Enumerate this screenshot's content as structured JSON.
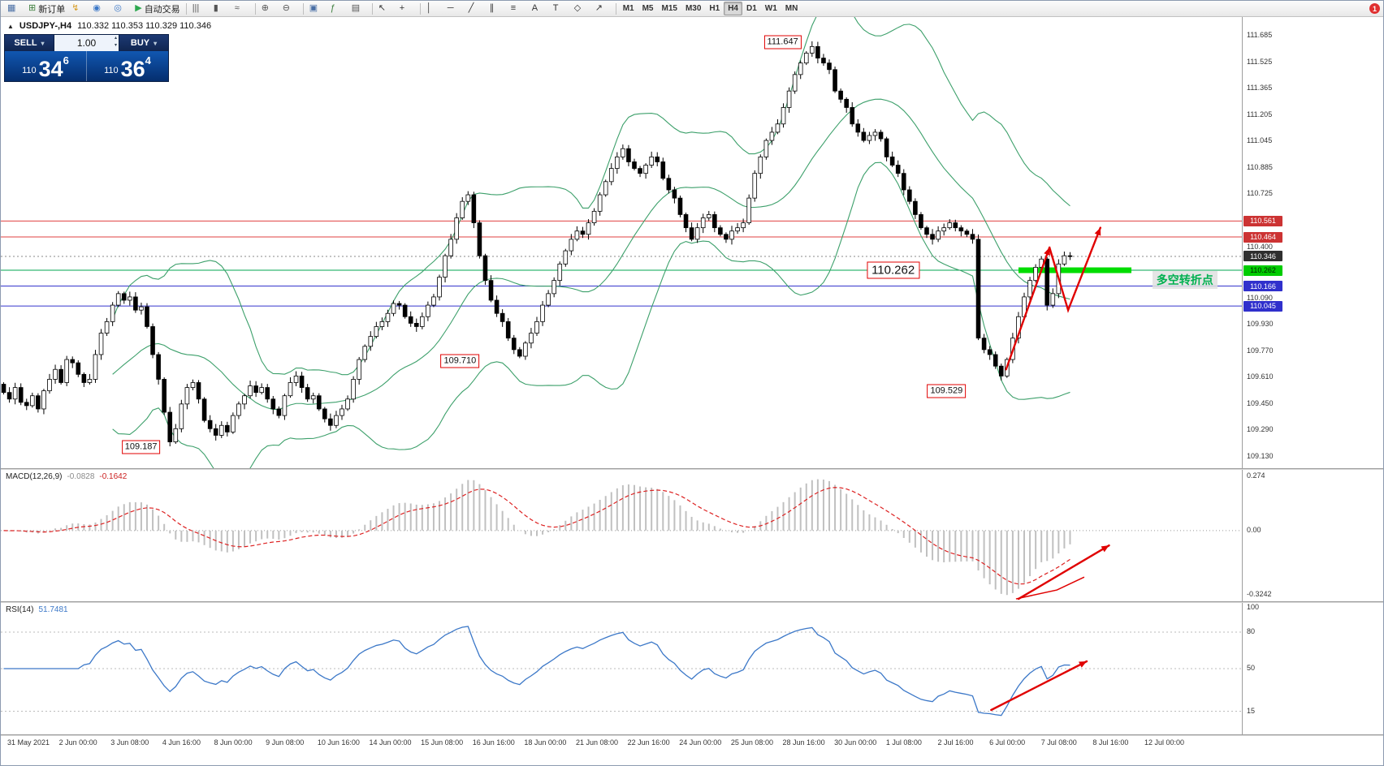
{
  "toolbar": {
    "items": [
      {
        "name": "new-chart-icon",
        "glyph": "▦",
        "color": "#4a6fa5"
      },
      {
        "name": "new-order-button",
        "label": "新订单",
        "glyph": "⊞",
        "color": "#3b7d3b"
      },
      {
        "name": "alerts-icon",
        "glyph": "↯",
        "color": "#d79b20"
      },
      {
        "name": "market-watch-icon",
        "glyph": "◉",
        "color": "#3c78c8"
      },
      {
        "name": "data-window-icon",
        "glyph": "◎",
        "color": "#3c78c8"
      },
      {
        "name": "autotrading-button",
        "label": "自动交易",
        "glyph": "▶",
        "color": "#2da84f"
      },
      {
        "sep": true
      },
      {
        "name": "bar-chart-icon",
        "glyph": "|||",
        "color": "#555555"
      },
      {
        "name": "candle-chart-icon",
        "glyph": "▮",
        "color": "#555555"
      },
      {
        "name": "line-chart-icon",
        "glyph": "≈",
        "color": "#555555"
      },
      {
        "sep": true
      },
      {
        "name": "zoom-in-icon",
        "glyph": "⊕",
        "color": "#555555"
      },
      {
        "name": "zoom-out-icon",
        "glyph": "⊖",
        "color": "#555555"
      },
      {
        "sep": true
      },
      {
        "name": "tile-windows-icon",
        "glyph": "▣",
        "color": "#4a6fa5"
      },
      {
        "name": "indicators-icon",
        "glyph": "ƒ",
        "color": "#3b7d3b"
      },
      {
        "name": "templates-icon",
        "glyph": "▤",
        "color": "#555555"
      },
      {
        "sep": true
      },
      {
        "name": "cursor-icon",
        "glyph": "↖",
        "color": "#333333"
      },
      {
        "name": "crosshair-icon",
        "glyph": "+",
        "color": "#333333"
      },
      {
        "sep": true
      },
      {
        "name": "vertical-line-icon",
        "glyph": "│",
        "color": "#333333"
      },
      {
        "name": "horizontal-line-icon",
        "glyph": "─",
        "color": "#333333"
      },
      {
        "name": "trendline-icon",
        "glyph": "╱",
        "color": "#333333"
      },
      {
        "name": "channel-icon",
        "glyph": "∥",
        "color": "#333333"
      },
      {
        "name": "fibonacci-icon",
        "glyph": "≡",
        "color": "#333333"
      },
      {
        "name": "text-tool-icon",
        "glyph": "A",
        "color": "#333333"
      },
      {
        "name": "label-tool-icon",
        "glyph": "T",
        "color": "#333333"
      },
      {
        "name": "shapes-icon",
        "glyph": "◇",
        "color": "#333333"
      },
      {
        "name": "arrows-tool-icon",
        "glyph": "↗",
        "color": "#333333"
      },
      {
        "sep": true
      }
    ],
    "timeframes": [
      {
        "label": "M1"
      },
      {
        "label": "M5"
      },
      {
        "label": "M15"
      },
      {
        "label": "M30"
      },
      {
        "label": "H1"
      },
      {
        "label": "H4",
        "active": true
      },
      {
        "label": "D1"
      },
      {
        "label": "W1"
      },
      {
        "label": "MN"
      }
    ],
    "notification_badge": "1"
  },
  "symbol_header": {
    "marker": "▲",
    "symbol": "USDJPY-,H4",
    "ohlc": "110.332 110.353 110.329 110.346"
  },
  "quote_panel": {
    "sell_label": "SELL",
    "buy_label": "BUY",
    "volume": "1.00",
    "sell_price": {
      "prefix": "110",
      "big": "34",
      "sup": "6"
    },
    "buy_price": {
      "prefix": "110",
      "big": "36",
      "sup": "4"
    }
  },
  "chart_data": {
    "type": "candlestick+indicators",
    "symbol": "USDJPY-",
    "timeframe": "H4",
    "closes": [
      109.52,
      109.48,
      109.55,
      109.46,
      109.44,
      109.5,
      109.42,
      109.53,
      109.6,
      109.66,
      109.58,
      109.72,
      109.7,
      109.63,
      109.58,
      109.6,
      109.75,
      109.88,
      109.95,
      110.05,
      110.12,
      110.08,
      110.1,
      110.02,
      110.04,
      109.92,
      109.75,
      109.6,
      109.4,
      109.22,
      109.3,
      109.45,
      109.55,
      109.58,
      109.48,
      109.35,
      109.3,
      109.26,
      109.32,
      109.28,
      109.38,
      109.45,
      109.5,
      109.56,
      109.52,
      109.55,
      109.48,
      109.42,
      109.38,
      109.5,
      109.58,
      109.62,
      109.55,
      109.48,
      109.5,
      109.42,
      109.36,
      109.32,
      109.38,
      109.42,
      109.48,
      109.6,
      109.72,
      109.8,
      109.86,
      109.92,
      109.95,
      110.0,
      110.06,
      110.05,
      109.98,
      109.94,
      109.92,
      109.98,
      110.05,
      110.1,
      110.22,
      110.35,
      110.45,
      110.58,
      110.68,
      110.72,
      110.55,
      110.35,
      110.2,
      110.08,
      110.0,
      109.95,
      109.85,
      109.78,
      109.74,
      109.82,
      109.88,
      109.95,
      110.05,
      110.12,
      110.2,
      110.3,
      110.38,
      110.45,
      110.5,
      110.48,
      110.55,
      110.62,
      110.72,
      110.8,
      110.88,
      110.95,
      111.0,
      110.92,
      110.88,
      110.85,
      110.9,
      110.95,
      110.92,
      110.82,
      110.75,
      110.7,
      110.6,
      110.52,
      110.45,
      110.52,
      110.58,
      110.6,
      110.52,
      110.48,
      110.45,
      110.5,
      110.52,
      110.55,
      110.7,
      110.85,
      110.95,
      111.05,
      111.1,
      111.15,
      111.25,
      111.35,
      111.45,
      111.52,
      111.58,
      111.62,
      111.55,
      111.52,
      111.48,
      111.35,
      111.3,
      111.25,
      111.15,
      111.1,
      111.05,
      111.08,
      111.1,
      111.06,
      110.95,
      110.9,
      110.85,
      110.75,
      110.68,
      110.6,
      110.52,
      110.48,
      110.45,
      110.5,
      110.52,
      110.55,
      110.52,
      110.5,
      110.48,
      110.45,
      109.85,
      109.78,
      109.75,
      109.68,
      109.62,
      109.72,
      109.85,
      109.98,
      110.1,
      110.2,
      110.28,
      110.33,
      110.05,
      110.12,
      110.3,
      110.35,
      110.346
    ],
    "bollinger": {
      "period": 20,
      "deviation": 2,
      "color": "#3da06b"
    },
    "colors": {
      "bull": "#ffffff",
      "bear": "#000000",
      "wick": "#000000",
      "macd_hist": "#c0c0c0",
      "macd_signal": "#dd2222",
      "rsi_line": "#3c78c8",
      "arrow": "#e00000",
      "resistance": "#e04040",
      "support": "#3535cc",
      "pivot": "#00a651",
      "green_zone": "#00dd00",
      "current_price_line": "#888888"
    },
    "price_axis": {
      "top": 111.74,
      "plain_labels": [
        "111.685",
        "111.525",
        "111.365",
        "111.205",
        "111.045",
        "110.885",
        "110.725",
        "110.400",
        "110.090",
        "109.930",
        "109.770",
        "109.610",
        "109.450",
        "109.290",
        "109.130"
      ],
      "label_boxes": [
        {
          "price": 110.561,
          "text": "110.561",
          "bg": "#cc3333",
          "fg": "#ffffff"
        },
        {
          "price": 110.464,
          "text": "110.464",
          "bg": "#cc3333",
          "fg": "#ffffff"
        },
        {
          "price": 110.346,
          "text": "110.346",
          "bg": "#2f2f2f",
          "fg": "#ffffff"
        },
        {
          "price": 110.262,
          "text": "110.262",
          "bg": "#00cc00",
          "fg": "#002200"
        },
        {
          "price": 110.166,
          "text": "110.166",
          "bg": "#3030cc",
          "fg": "#ffffff"
        },
        {
          "price": 110.045,
          "text": "110.045",
          "bg": "#3030cc",
          "fg": "#ffffff"
        }
      ]
    },
    "hlines": [
      {
        "price": 110.561,
        "color": "#e04040"
      },
      {
        "price": 110.464,
        "color": "#e04040"
      },
      {
        "price": 110.262,
        "color": "#00a651"
      },
      {
        "price": 110.166,
        "color": "#3535cc"
      },
      {
        "price": 110.045,
        "color": "#3535cc"
      }
    ],
    "current_price": 110.346,
    "green_zone": {
      "price": 110.262,
      "x1f": 0.82,
      "x2f": 0.911,
      "thickness": 7
    },
    "annotations": [
      {
        "text": "111.647",
        "xf": 0.63,
        "price": 111.647,
        "big": false
      },
      {
        "text": "110.262",
        "xf": 0.719,
        "price": 110.262,
        "big": true
      },
      {
        "text": "109.710",
        "xf": 0.37,
        "price": 109.71,
        "big": false
      },
      {
        "text": "109.529",
        "xf": 0.762,
        "price": 109.529,
        "big": false
      },
      {
        "text": "109.187",
        "xf": 0.113,
        "price": 109.187,
        "big": false
      }
    ],
    "note": {
      "text": "多空转折点",
      "xf": 0.954,
      "price": 110.205
    },
    "arrows_main": [
      {
        "points": [
          [
            0.81,
            109.66
          ],
          [
            0.845,
            110.4
          ]
        ]
      },
      {
        "points": [
          [
            0.845,
            110.4
          ],
          [
            0.86,
            110.02
          ],
          [
            0.886,
            110.52
          ]
        ]
      }
    ],
    "macd": {
      "label": "MACD(12,26,9)",
      "value_main": "-0.0828",
      "value_signal": "-0.1642",
      "fast": 12,
      "slow": 26,
      "signal": 9,
      "vmax": 0.274,
      "vmin": -0.3242,
      "axis_labels": [
        {
          "value": 0.274,
          "text": "0.274"
        },
        {
          "value": 0,
          "text": "0.00"
        },
        {
          "value": -0.3242,
          "text": "-0.3242"
        }
      ],
      "arrow": {
        "points": [
          [
            0.82,
            -0.345
          ],
          [
            0.893,
            -0.075
          ]
        ]
      },
      "curve": {
        "points": [
          [
            0.818,
            -0.345
          ],
          [
            0.851,
            -0.3
          ],
          [
            0.873,
            -0.235
          ]
        ]
      }
    },
    "rsi": {
      "label": "RSI(14)",
      "value": "51.7481",
      "period": 14,
      "axis_labels": [
        {
          "value": 100,
          "text": "100"
        },
        {
          "value": 80,
          "text": "80"
        },
        {
          "value": 50,
          "text": "50"
        },
        {
          "value": 15,
          "text": "15"
        }
      ],
      "levels": [
        80,
        50,
        15
      ],
      "arrow": {
        "points": [
          [
            0.798,
            16
          ],
          [
            0.875,
            56
          ]
        ]
      }
    },
    "time_labels": [
      "31 May 2021",
      "2 Jun 00:00",
      "3 Jun 08:00",
      "4 Jun 16:00",
      "8 Jun 00:00",
      "9 Jun 08:00",
      "10 Jun 16:00",
      "14 Jun 00:00",
      "15 Jun 08:00",
      "16 Jun 16:00",
      "18 Jun 00:00",
      "21 Jun 08:00",
      "22 Jun 16:00",
      "24 Jun 00:00",
      "25 Jun 08:00",
      "28 Jun 16:00",
      "30 Jun 00:00",
      "1 Jul 08:00",
      "2 Jul 16:00",
      "6 Jul 00:00",
      "7 Jul 08:00",
      "8 Jul 16:00",
      "12 Jul 00:00"
    ]
  }
}
